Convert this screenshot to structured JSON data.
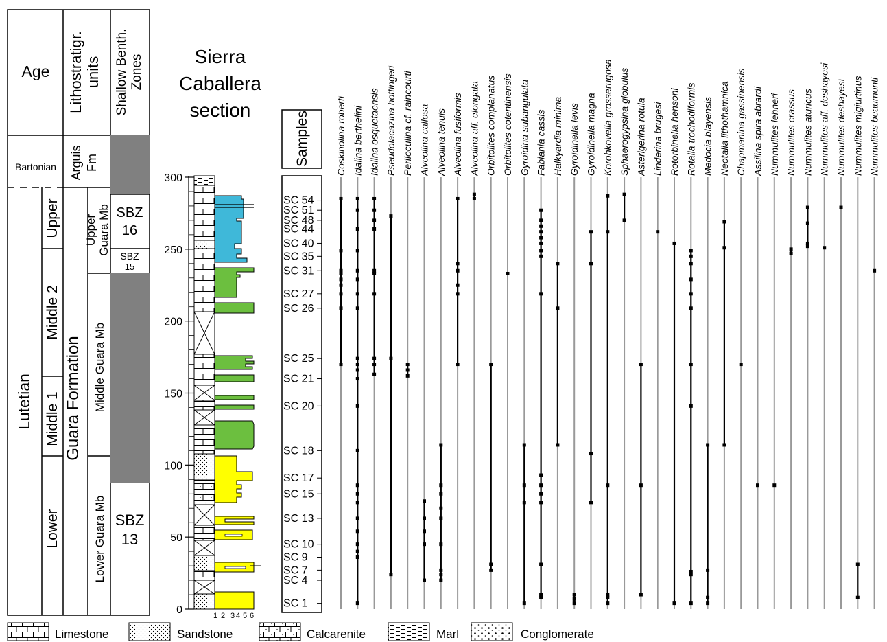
{
  "header": {
    "age": "Age",
    "litho": [
      "Lithostratigr.",
      "units"
    ],
    "zones": [
      "Shallow Benth.",
      "Zones"
    ],
    "section_title": [
      "Sierra",
      "Caballera",
      "section"
    ],
    "samples": "Samples"
  },
  "age_labels": {
    "bartonian": "Bartonian",
    "lutetian": "Lutetian",
    "upper": "Upper",
    "middle2": "Middle 2",
    "middle1": "Middle 1",
    "lower": "Lower"
  },
  "litho_labels": {
    "arguis": [
      "Arguis",
      "Fm"
    ],
    "upper_guara": [
      "Upper",
      "Guara Mb"
    ],
    "guara_formation": "Guara Formation",
    "middle_guara": "Middle Guara Mb",
    "lower_guara": "Lower Guara Mb"
  },
  "zone_labels": {
    "sbz16": [
      "SBZ",
      "16"
    ],
    "sbz15": [
      "SBZ",
      "15"
    ],
    "sbz13": [
      "SBZ",
      "13"
    ]
  },
  "colors": {
    "zone_gray": "#808080",
    "upper_fill": "#3fb8d9",
    "middle_fill": "#6cbf3f",
    "lower_fill": "#ffff00",
    "range_line": "#999999",
    "occurrence": "#000000"
  },
  "depth_axis": {
    "unit": "m",
    "ticks": [
      0,
      50,
      100,
      150,
      200,
      250,
      300
    ],
    "range": [
      0,
      300
    ]
  },
  "grain_scale": [
    "1",
    "2",
    "3",
    "4",
    "5",
    "6"
  ],
  "samples": [
    {
      "label": "SC 1",
      "height": 4
    },
    {
      "label": "SC 4",
      "height": 20
    },
    {
      "label": "SC 7",
      "height": 27
    },
    {
      "label": "SC 9",
      "height": 36
    },
    {
      "label": "SC 10",
      "height": 45
    },
    {
      "label": "SC 13",
      "height": 63
    },
    {
      "label": "SC 15",
      "height": 80
    },
    {
      "label": "SC 17",
      "height": 91
    },
    {
      "label": "SC 18",
      "height": 110
    },
    {
      "label": "SC 20",
      "height": 141
    },
    {
      "label": "SC 21",
      "height": 160
    },
    {
      "label": "SC 25",
      "height": 174
    },
    {
      "label": "SC 26",
      "height": 209
    },
    {
      "label": "SC 27",
      "height": 219
    },
    {
      "label": "SC 31",
      "height": 235
    },
    {
      "label": "SC 35",
      "height": 245
    },
    {
      "label": "SC 40",
      "height": 254
    },
    {
      "label": "SC 44",
      "height": 264
    },
    {
      "label": "SC 48",
      "height": 270
    },
    {
      "label": "SC 51",
      "height": 277
    },
    {
      "label": "SC 54",
      "height": 284
    }
  ],
  "species": [
    {
      "name": "Coskinolina roberti",
      "range": [
        170,
        285
      ],
      "occ": [
        170,
        209,
        219,
        225,
        229,
        233,
        235,
        249,
        285
      ]
    },
    {
      "name": "Idalina berthelini",
      "range": [
        4,
        285
      ],
      "occ": [
        4,
        36,
        40,
        45,
        54,
        63,
        74,
        80,
        86,
        110,
        141,
        160,
        166,
        170,
        174,
        209,
        219,
        229,
        235,
        249,
        264,
        277,
        285
      ]
    },
    {
      "name": "Idalina osquetaensis",
      "range": [
        163,
        285
      ],
      "occ": [
        163,
        170,
        174,
        219,
        233,
        235,
        264,
        270,
        277,
        285
      ]
    },
    {
      "name": "Pseudolacazina hottingeri",
      "range": [
        24,
        273
      ],
      "occ": [
        24,
        174,
        273
      ]
    },
    {
      "name": "Periloculina cf. raincourti",
      "range": [
        162,
        170
      ],
      "occ": [
        162,
        166,
        170
      ]
    },
    {
      "name": "Alveolina callosa",
      "range": [
        20,
        75
      ],
      "occ": [
        20,
        45,
        54,
        63,
        75
      ]
    },
    {
      "name": "Alveolina tenuis",
      "range": [
        20,
        114
      ],
      "occ": [
        20,
        24,
        27,
        45,
        63,
        70,
        80,
        86,
        114
      ]
    },
    {
      "name": "Alveolina fusiformis",
      "range": [
        170,
        285
      ],
      "occ": [
        170,
        219,
        225,
        235,
        240,
        285
      ]
    },
    {
      "name": "Alveolina aff. elongata",
      "range": [
        285,
        288
      ],
      "occ": [
        285,
        288
      ]
    },
    {
      "name": "Orbitolites complanatus",
      "range": [
        27,
        170
      ],
      "occ": [
        27,
        31,
        170
      ]
    },
    {
      "name": "Orbitolites cotentinensis",
      "range": [
        233,
        233
      ],
      "occ": [
        233
      ]
    },
    {
      "name": "Gyroidina subangulata",
      "range": [
        4,
        114
      ],
      "occ": [
        4,
        74,
        86,
        114
      ]
    },
    {
      "name": "Fabiania cassis",
      "range": [
        8,
        277
      ],
      "occ": [
        8,
        10,
        31,
        74,
        80,
        86,
        93,
        219,
        245,
        249,
        254,
        258,
        262,
        266,
        270,
        277
      ]
    },
    {
      "name": "Halkyardia minima",
      "range": [
        114,
        240
      ],
      "occ": [
        114,
        209,
        240
      ]
    },
    {
      "name": "Gyroidinella levis",
      "range": [
        4,
        10
      ],
      "occ": [
        4,
        7,
        10
      ]
    },
    {
      "name": "Gyroidinella magna",
      "range": [
        74,
        262
      ],
      "occ": [
        74,
        108,
        240,
        262
      ]
    },
    {
      "name": "Korobkovella grosserugosa",
      "range": [
        4,
        287
      ],
      "occ": [
        4,
        8,
        10,
        86,
        262,
        287
      ]
    },
    {
      "name": "Sphaerogypsina globulus",
      "range": [
        270,
        288
      ],
      "occ": [
        270,
        288
      ]
    },
    {
      "name": "Asterigerina rotula",
      "range": [
        10,
        170
      ],
      "occ": [
        10,
        86,
        170
      ]
    },
    {
      "name": "Linderina brugesi",
      "range": [
        262,
        262
      ],
      "occ": [
        262
      ]
    },
    {
      "name": "Rotorbinella hensoni",
      "range": [
        4,
        254
      ],
      "occ": [
        4,
        254
      ]
    },
    {
      "name": "Rotalia trochodiformis",
      "range": [
        4,
        249
      ],
      "occ": [
        4,
        24,
        26,
        141,
        170,
        209,
        219,
        229,
        240,
        245,
        249
      ]
    },
    {
      "name": "Medocia blayensis",
      "range": [
        4,
        114
      ],
      "occ": [
        4,
        8,
        27,
        114
      ]
    },
    {
      "name": "Neotalia lithothamnica",
      "range": [
        114,
        269
      ],
      "occ": [
        114,
        251,
        269
      ]
    },
    {
      "name": "Chapmanina gassinensis",
      "range": [
        170,
        170
      ],
      "occ": [
        170
      ]
    },
    {
      "name": "Assilina spira abrardi",
      "range": [
        86,
        86
      ],
      "occ": [
        86
      ]
    },
    {
      "name": "Nummulites lehneri",
      "range": [
        86,
        86
      ],
      "occ": [
        86
      ]
    },
    {
      "name": "Nummulites crassus",
      "range": [
        247,
        250
      ],
      "occ": [
        247,
        250
      ]
    },
    {
      "name": "Nummulites aturicus",
      "range": [
        252,
        279
      ],
      "occ": [
        252,
        254,
        268,
        279
      ]
    },
    {
      "name": "Nummulites aff. deshayesi",
      "range": [
        251,
        251
      ],
      "occ": [
        251
      ]
    },
    {
      "name": "Nummulites deshayesi",
      "range": [
        279,
        279
      ],
      "occ": [
        279
      ]
    },
    {
      "name": "Nummulites migiurtinus",
      "range": [
        8,
        31
      ],
      "occ": [
        8,
        31
      ]
    },
    {
      "name": "Nummulites beaumonti",
      "range": [
        235,
        235
      ],
      "occ": [
        235
      ]
    }
  ],
  "legend": [
    "Limestone",
    "Sandstone",
    "Calcarenite",
    "Marl",
    "Conglomerate"
  ]
}
